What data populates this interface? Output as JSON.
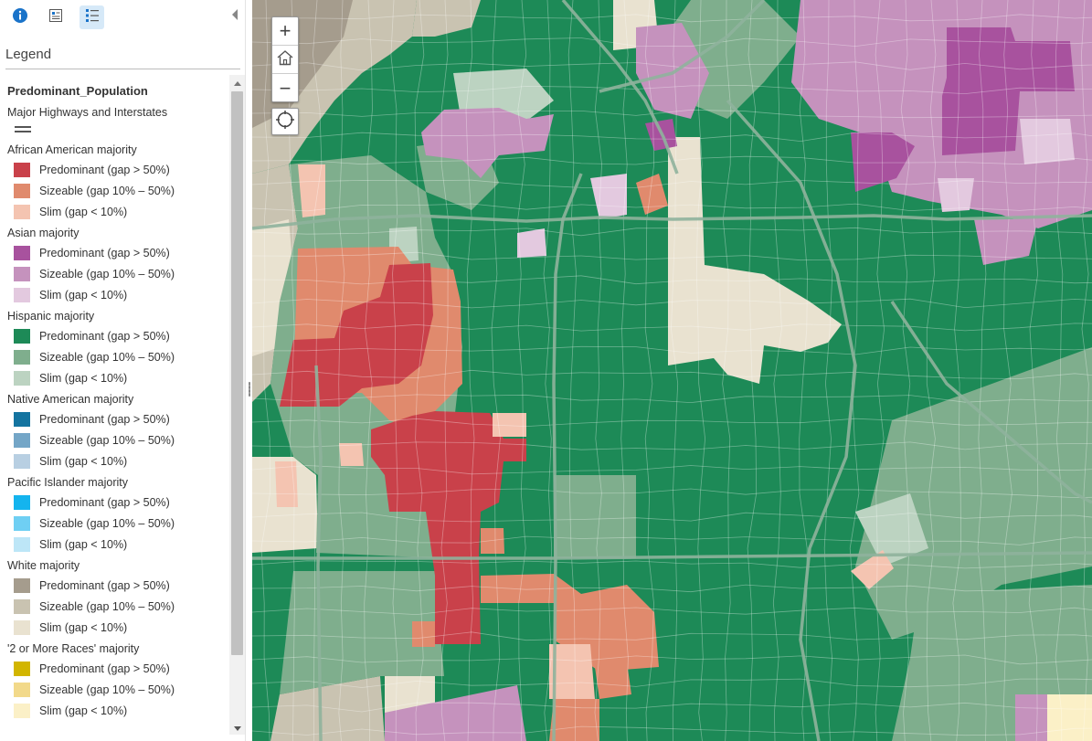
{
  "toolbar": {
    "buttons": [
      {
        "icon": "info-icon",
        "active": false
      },
      {
        "icon": "content-icon",
        "active": false
      },
      {
        "icon": "legend-list-icon",
        "active": true
      }
    ]
  },
  "panel": {
    "title": "Legend"
  },
  "legend": {
    "layer_title": "Predominant_Population",
    "highways_label": "Major Highways and Interstates",
    "groups": [
      {
        "title": "African American majority",
        "items": [
          {
            "label": "Predominant (gap > 50%)",
            "color": "#c9414a"
          },
          {
            "label": "Sizeable (gap 10% – 50%)",
            "color": "#e08a6d"
          },
          {
            "label": "Slim (gap < 10%)",
            "color": "#f4c4b1"
          }
        ]
      },
      {
        "title": "Asian majority",
        "items": [
          {
            "label": "Predominant (gap > 50%)",
            "color": "#a8529e"
          },
          {
            "label": "Sizeable (gap 10% – 50%)",
            "color": "#c592bd"
          },
          {
            "label": "Slim (gap < 10%)",
            "color": "#e3c9df"
          }
        ]
      },
      {
        "title": "Hispanic majority",
        "items": [
          {
            "label": "Predominant (gap > 50%)",
            "color": "#1d8a57"
          },
          {
            "label": "Sizeable (gap 10% – 50%)",
            "color": "#7fae8d"
          },
          {
            "label": "Slim (gap < 10%)",
            "color": "#bcd3c1"
          }
        ]
      },
      {
        "title": "Native American majority",
        "items": [
          {
            "label": "Predominant (gap > 50%)",
            "color": "#1474a0"
          },
          {
            "label": "Sizeable (gap 10% – 50%)",
            "color": "#74a6c7"
          },
          {
            "label": "Slim (gap < 10%)",
            "color": "#b8cfe2"
          }
        ]
      },
      {
        "title": "Pacific Islander majority",
        "items": [
          {
            "label": "Predominant (gap > 50%)",
            "color": "#14b4ee"
          },
          {
            "label": "Sizeable (gap 10% – 50%)",
            "color": "#6fcff3"
          },
          {
            "label": "Slim (gap < 10%)",
            "color": "#bde6f7"
          }
        ]
      },
      {
        "title": "White majority",
        "items": [
          {
            "label": "Predominant (gap > 50%)",
            "color": "#a59c8d"
          },
          {
            "label": "Sizeable (gap 10% – 50%)",
            "color": "#c9c3b1"
          },
          {
            "label": "Slim (gap < 10%)",
            "color": "#e9e2d0"
          }
        ]
      },
      {
        "title": "'2 or More Races' majority",
        "items": [
          {
            "label": "Predominant (gap > 50%)",
            "color": "#d2b500"
          },
          {
            "label": "Sizeable (gap 10% – 50%)",
            "color": "#f2d98a"
          },
          {
            "label": "Slim (gap < 10%)",
            "color": "#fbf0c7"
          }
        ]
      }
    ]
  },
  "map": {
    "controls": {
      "zoom_in": "+",
      "zoom_out": "−"
    }
  }
}
